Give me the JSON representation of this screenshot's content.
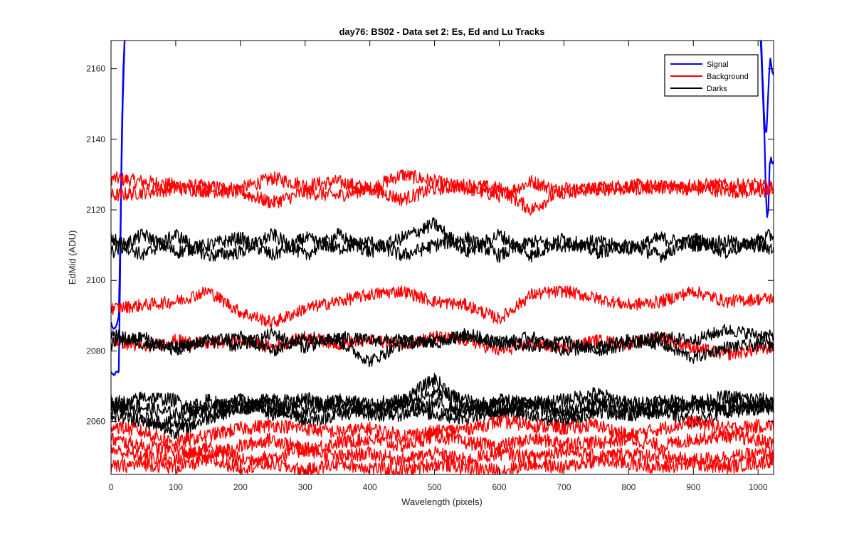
{
  "chart_data": {
    "type": "line",
    "title": "day76: BS02 - Data set 2: Es, Ed and Lu Tracks",
    "xlabel": "Wavelength (pixels)",
    "ylabel": "EdMid (ADU)",
    "xlim": [
      0,
      1024
    ],
    "ylim": [
      2045,
      2168
    ],
    "x_ticks": [
      0,
      100,
      200,
      300,
      400,
      500,
      600,
      700,
      800,
      900,
      1000
    ],
    "y_ticks": [
      2060,
      2080,
      2100,
      2120,
      2140,
      2160
    ],
    "x_tick_labels": [
      "0",
      "100",
      "200",
      "300",
      "400",
      "500",
      "600",
      "700",
      "800",
      "900",
      "1000"
    ],
    "y_tick_labels": [
      "2060",
      "2080",
      "2100",
      "2120",
      "2140",
      "2160"
    ],
    "grid": false,
    "legend_position": "top-right",
    "legend": [
      {
        "label": "Signal",
        "color": "#0000ff"
      },
      {
        "label": "Background",
        "color": "#ff0000"
      },
      {
        "label": "Darks",
        "color": "#000000"
      }
    ],
    "series": [
      {
        "group": "Signal",
        "color": "#0000ff",
        "noise": 0.3,
        "width": 2.2,
        "x": [
          0,
          4,
          8,
          12,
          14,
          16,
          18,
          20,
          21
        ],
        "y": [
          2074,
          2073,
          2074,
          2074,
          2100,
          2130,
          2150,
          2162,
          2168
        ]
      },
      {
        "group": "Signal",
        "color": "#0000ff",
        "noise": 0.3,
        "width": 2.2,
        "x": [
          0,
          4,
          8,
          12,
          15,
          17,
          19,
          21
        ],
        "y": [
          2088,
          2086,
          2087,
          2090,
          2118,
          2145,
          2160,
          2168
        ]
      },
      {
        "group": "Signal",
        "color": "#0000ff",
        "noise": 0.3,
        "width": 2.2,
        "x": [
          1004,
          1006,
          1008,
          1010,
          1012,
          1014,
          1016,
          1018,
          1020,
          1022,
          1024
        ],
        "y": [
          2168,
          2160,
          2150,
          2140,
          2125,
          2118,
          2120,
          2133,
          2135,
          2133,
          2134
        ]
      },
      {
        "group": "Signal",
        "color": "#0000ff",
        "noise": 0.3,
        "width": 2.2,
        "x": [
          1005,
          1007,
          1009,
          1011,
          1013,
          1015,
          1017,
          1019,
          1021,
          1024
        ],
        "y": [
          2168,
          2158,
          2148,
          2142,
          2142,
          2150,
          2158,
          2163,
          2160,
          2158
        ]
      },
      {
        "group": "Background",
        "color": "#ff0000",
        "noise": 2.0,
        "x": [
          0,
          100,
          200,
          250,
          300,
          350,
          400,
          450,
          500,
          550,
          600,
          650,
          700,
          800,
          900,
          1000,
          1024
        ],
        "y": [
          2129,
          2127,
          2126,
          2129,
          2127,
          2128,
          2126,
          2130,
          2128,
          2126,
          2124,
          2128,
          2125,
          2127,
          2126,
          2125,
          2126
        ]
      },
      {
        "group": "Background",
        "color": "#ff0000",
        "noise": 2.0,
        "x": [
          0,
          100,
          200,
          250,
          300,
          350,
          400,
          450,
          500,
          550,
          600,
          650,
          700,
          800,
          900,
          1000,
          1024
        ],
        "y": [
          2124,
          2126,
          2125,
          2122,
          2125,
          2124,
          2126,
          2123,
          2126,
          2127,
          2126,
          2120,
          2126,
          2126,
          2127,
          2127,
          2126
        ]
      },
      {
        "group": "Darks",
        "color": "#000000",
        "noise": 2.0,
        "x": [
          0,
          50,
          100,
          150,
          200,
          250,
          300,
          350,
          400,
          450,
          500,
          550,
          600,
          650,
          700,
          750,
          800,
          850,
          900,
          950,
          1024
        ],
        "y": [
          2108,
          2113,
          2108,
          2110,
          2112,
          2107,
          2112,
          2109,
          2111,
          2107,
          2110,
          2112,
          2107,
          2111,
          2110,
          2111,
          2109,
          2112,
          2110,
          2111,
          2109
        ]
      },
      {
        "group": "Darks",
        "color": "#000000",
        "noise": 2.0,
        "x": [
          0,
          50,
          100,
          150,
          200,
          250,
          300,
          350,
          400,
          450,
          500,
          550,
          600,
          650,
          700,
          750,
          800,
          850,
          900,
          950,
          1024
        ],
        "y": [
          2112,
          2107,
          2113,
          2107,
          2108,
          2113,
          2107,
          2113,
          2108,
          2112,
          2116,
          2108,
          2113,
          2107,
          2112,
          2108,
          2110,
          2107,
          2112,
          2108,
          2113
        ]
      },
      {
        "group": "Background",
        "color": "#ff0000",
        "noise": 1.8,
        "x": [
          0,
          50,
          100,
          150,
          200,
          250,
          300,
          350,
          400,
          450,
          500,
          550,
          600,
          650,
          700,
          750,
          800,
          850,
          900,
          950,
          1024
        ],
        "y": [
          2092,
          2093,
          2094,
          2097,
          2091,
          2088,
          2092,
          2094,
          2096,
          2097,
          2094,
          2093,
          2089,
          2096,
          2097,
          2095,
          2093,
          2094,
          2097,
          2094,
          2095
        ]
      },
      {
        "group": "Background",
        "color": "#ff0000",
        "noise": 1.8,
        "x": [
          0,
          50,
          100,
          150,
          200,
          250,
          300,
          350,
          400,
          450,
          500,
          550,
          600,
          650,
          700,
          750,
          800,
          850,
          900,
          950,
          1024
        ],
        "y": [
          2083,
          2081,
          2083,
          2082,
          2083,
          2081,
          2084,
          2082,
          2083,
          2082,
          2084,
          2083,
          2080,
          2082,
          2081,
          2083,
          2082,
          2084,
          2081,
          2079,
          2081
        ]
      },
      {
        "group": "Darks",
        "color": "#000000",
        "noise": 1.8,
        "x": [
          0,
          50,
          100,
          150,
          200,
          250,
          300,
          350,
          400,
          450,
          500,
          550,
          600,
          650,
          700,
          750,
          800,
          850,
          900,
          950,
          1024
        ],
        "y": [
          2085,
          2082,
          2081,
          2083,
          2084,
          2080,
          2084,
          2083,
          2077,
          2082,
          2083,
          2084,
          2083,
          2081,
          2083,
          2080,
          2082,
          2084,
          2083,
          2086,
          2084
        ]
      },
      {
        "group": "Darks",
        "color": "#000000",
        "noise": 1.8,
        "x": [
          0,
          50,
          100,
          150,
          200,
          250,
          300,
          350,
          400,
          450,
          500,
          550,
          600,
          650,
          700,
          750,
          800,
          850,
          900,
          950,
          1024
        ],
        "y": [
          2082,
          2084,
          2080,
          2083,
          2081,
          2085,
          2081,
          2084,
          2083,
          2083,
          2082,
          2085,
          2082,
          2084,
          2080,
          2081,
          2083,
          2082,
          2078,
          2081,
          2082
        ]
      },
      {
        "group": "Darks",
        "color": "#000000",
        "noise": 2.0,
        "x": [
          0,
          50,
          100,
          150,
          200,
          250,
          300,
          350,
          400,
          450,
          500,
          550,
          600,
          650,
          700,
          750,
          800,
          850,
          900,
          950,
          1024
        ],
        "y": [
          2066,
          2064,
          2062,
          2066,
          2063,
          2067,
          2064,
          2066,
          2065,
          2066,
          2072,
          2064,
          2066,
          2065,
          2066,
          2068,
          2065,
          2066,
          2065,
          2067,
          2066
        ]
      },
      {
        "group": "Darks",
        "color": "#000000",
        "noise": 2.0,
        "x": [
          0,
          50,
          100,
          150,
          200,
          250,
          300,
          350,
          400,
          450,
          500,
          550,
          600,
          650,
          700,
          750,
          800,
          850,
          900,
          950,
          1024
        ],
        "y": [
          2063,
          2067,
          2066,
          2062,
          2066,
          2062,
          2067,
          2063,
          2064,
          2065,
          2068,
          2066,
          2062,
          2066,
          2063,
          2066,
          2064,
          2062,
          2066,
          2063,
          2064
        ]
      },
      {
        "group": "Darks",
        "color": "#000000",
        "noise": 2.0,
        "x": [
          0,
          50,
          100,
          150,
          200,
          250,
          300,
          350,
          400,
          450,
          500,
          550,
          600,
          650,
          700,
          750,
          800,
          850,
          900,
          950,
          1024
        ],
        "y": [
          2065,
          2061,
          2059,
          2064,
          2066,
          2063,
          2062,
          2066,
          2062,
          2062,
          2065,
          2063,
          2065,
          2064,
          2062,
          2064,
          2062,
          2066,
          2064,
          2065,
          2065
        ]
      },
      {
        "group": "Darks",
        "color": "#000000",
        "noise": 2.0,
        "x": [
          0,
          50,
          100,
          150,
          200,
          250,
          300,
          350,
          400,
          450,
          500,
          550,
          600,
          650,
          700,
          750,
          800,
          850,
          900,
          950,
          1024
        ],
        "y": [
          2062,
          2060,
          2057,
          2061,
          2064,
          2065,
          2060,
          2062,
          2063,
          2064,
          2062,
          2061,
          2063,
          2061,
          2060,
          2063,
          2062,
          2063,
          2060,
          2063,
          2064
        ]
      },
      {
        "group": "Background",
        "color": "#ff0000",
        "noise": 2.0,
        "x": [
          0,
          50,
          100,
          150,
          200,
          250,
          300,
          350,
          400,
          450,
          500,
          550,
          600,
          650,
          700,
          750,
          800,
          850,
          900,
          950,
          1024
        ],
        "y": [
          2059,
          2057,
          2054,
          2056,
          2058,
          2059,
          2058,
          2057,
          2058,
          2056,
          2057,
          2058,
          2060,
          2059,
          2058,
          2059,
          2056,
          2058,
          2060,
          2058,
          2059
        ]
      },
      {
        "group": "Background",
        "color": "#ff0000",
        "noise": 2.0,
        "x": [
          0,
          50,
          100,
          150,
          200,
          250,
          300,
          350,
          400,
          450,
          500,
          550,
          600,
          650,
          700,
          750,
          800,
          850,
          900,
          950,
          1024
        ],
        "y": [
          2055,
          2053,
          2052,
          2050,
          2053,
          2055,
          2052,
          2054,
          2055,
          2053,
          2056,
          2054,
          2053,
          2055,
          2054,
          2054,
          2055,
          2053,
          2055,
          2056,
          2054
        ]
      },
      {
        "group": "Background",
        "color": "#ff0000",
        "noise": 2.0,
        "x": [
          0,
          50,
          100,
          150,
          200,
          250,
          300,
          350,
          400,
          450,
          500,
          550,
          600,
          650,
          700,
          750,
          800,
          850,
          900,
          950,
          1024
        ],
        "y": [
          2052,
          2050,
          2049,
          2053,
          2049,
          2050,
          2052,
          2050,
          2051,
          2049,
          2051,
          2049,
          2051,
          2050,
          2052,
          2050,
          2051,
          2050,
          2049,
          2050,
          2051
        ]
      },
      {
        "group": "Background",
        "color": "#ff0000",
        "noise": 2.0,
        "x": [
          0,
          50,
          100,
          150,
          200,
          250,
          300,
          350,
          400,
          450,
          500,
          550,
          600,
          650,
          700,
          750,
          800,
          850,
          900,
          950,
          1024
        ],
        "y": [
          2047,
          2048,
          2047,
          2049,
          2047,
          2048,
          2046,
          2048,
          2047,
          2046,
          2048,
          2047,
          2046,
          2048,
          2047,
          2049,
          2048,
          2047,
          2048,
          2047,
          2049
        ]
      }
    ]
  }
}
